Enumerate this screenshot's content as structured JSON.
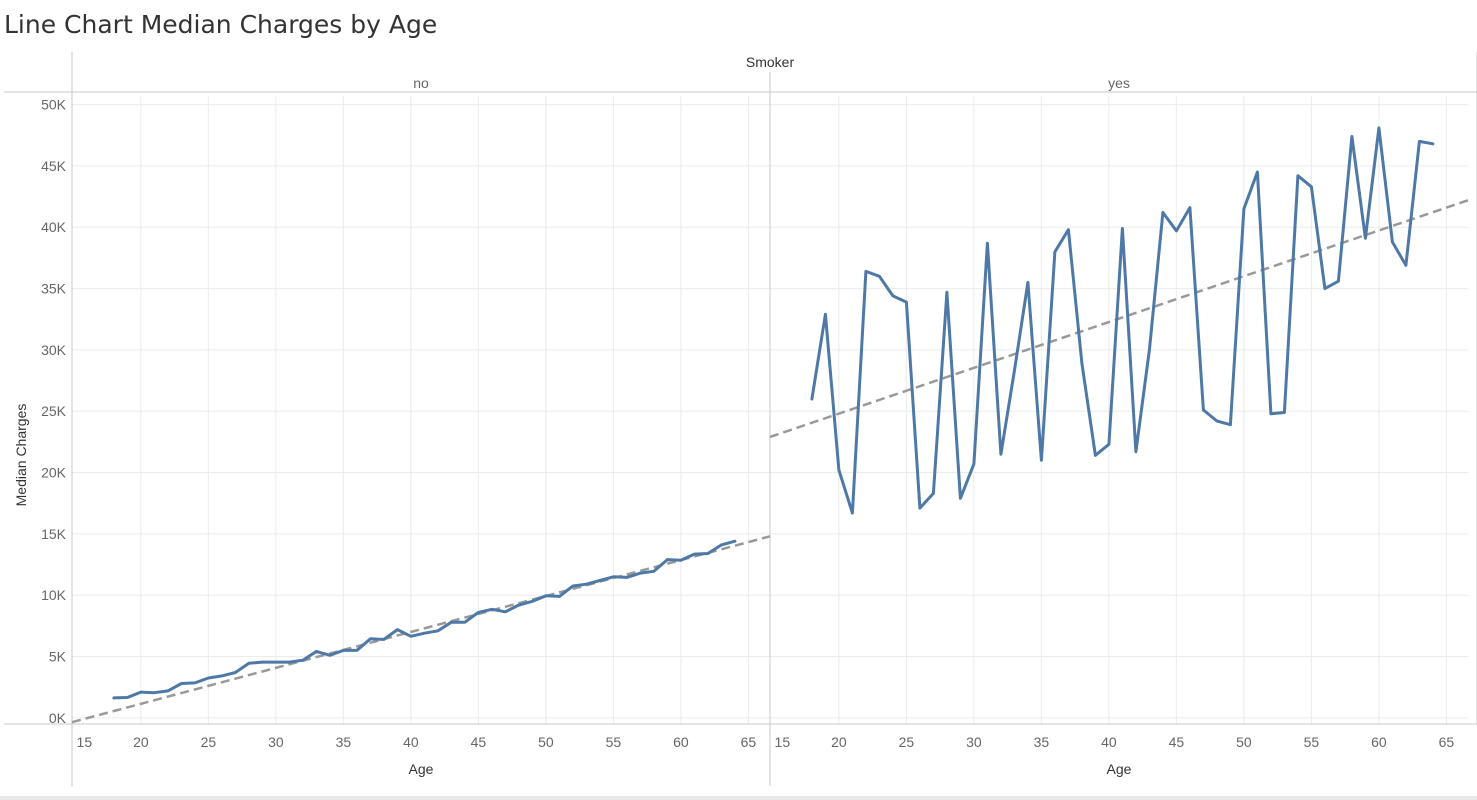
{
  "title": "Line Chart Median Charges by Age",
  "colors": {
    "line": "#4e79a7",
    "trend": "#999999",
    "grid": "#ebebeb",
    "axis": "#c8c8c8",
    "text": "#666666",
    "label": "#333333"
  },
  "chart_data": {
    "type": "line",
    "title": "Line Chart Median Charges by Age",
    "column_header": "Smoker",
    "ylabel": "Median Charges",
    "xlabel": "Age",
    "ylim": [
      -500,
      50700
    ],
    "xlim": [
      14.9,
      66.6
    ],
    "y_ticks": [
      0,
      5000,
      10000,
      15000,
      20000,
      25000,
      30000,
      35000,
      40000,
      45000,
      50000
    ],
    "y_tick_labels": [
      "0K",
      "5K",
      "10K",
      "15K",
      "20K",
      "25K",
      "30K",
      "35K",
      "40K",
      "45K",
      "50K"
    ],
    "x_ticks": [
      15,
      20,
      25,
      30,
      35,
      40,
      45,
      50,
      55,
      60,
      65
    ],
    "x_tick_labels": [
      "15",
      "20",
      "25",
      "30",
      "35",
      "40",
      "45",
      "50",
      "55",
      "60",
      "65"
    ],
    "grid": true,
    "panels": [
      {
        "label": "no",
        "x": [
          18,
          19,
          20,
          21,
          22,
          23,
          24,
          25,
          26,
          27,
          28,
          29,
          30,
          31,
          32,
          33,
          34,
          35,
          36,
          37,
          38,
          39,
          40,
          41,
          42,
          43,
          44,
          45,
          46,
          47,
          48,
          49,
          50,
          51,
          52,
          53,
          54,
          55,
          56,
          57,
          58,
          59,
          60,
          61,
          62,
          63,
          64
        ],
        "y": [
          1630,
          1660,
          2100,
          2050,
          2200,
          2800,
          2850,
          3250,
          3420,
          3700,
          4450,
          4550,
          4550,
          4550,
          4700,
          5420,
          5100,
          5500,
          5500,
          6450,
          6400,
          7200,
          6650,
          6900,
          7100,
          7800,
          7800,
          8600,
          8850,
          8650,
          9200,
          9500,
          9950,
          9900,
          10750,
          10900,
          11200,
          11500,
          11450,
          11800,
          11950,
          12900,
          12850,
          13350,
          13400,
          14100,
          14400
        ],
        "trend": {
          "x": [
            14.9,
            66.6
          ],
          "y": [
            -350,
            14800
          ]
        }
      },
      {
        "label": "yes",
        "x": [
          18,
          19,
          20,
          21,
          22,
          23,
          24,
          25,
          26,
          27,
          28,
          29,
          30,
          31,
          32,
          33,
          34,
          35,
          36,
          37,
          38,
          39,
          40,
          41,
          42,
          43,
          44,
          45,
          46,
          47,
          48,
          49,
          50,
          51,
          52,
          53,
          54,
          55,
          56,
          57,
          58,
          59,
          60,
          61,
          62,
          63,
          64
        ],
        "y": [
          26000,
          32900,
          20200,
          16700,
          36400,
          36000,
          34400,
          33900,
          17100,
          18300,
          34700,
          17900,
          20700,
          38700,
          21500,
          28300,
          35500,
          21000,
          38000,
          39800,
          28900,
          21400,
          22300,
          39900,
          21700,
          30000,
          41200,
          39700,
          41600,
          25100,
          24200,
          23900,
          41500,
          44500,
          24800,
          24900,
          44200,
          43300,
          35000,
          35600,
          47400,
          39100,
          48100,
          38800,
          36900,
          47000,
          46800
        ],
        "trend": {
          "x": [
            14.9,
            66.6
          ],
          "y": [
            22900,
            42200
          ]
        }
      }
    ]
  }
}
